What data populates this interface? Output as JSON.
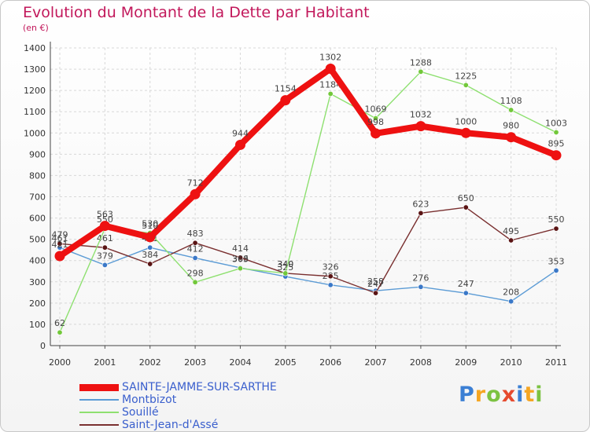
{
  "logo": {
    "letters": [
      {
        "char": "P",
        "color": "#3b7fd4"
      },
      {
        "char": "r",
        "color": "#f5a623"
      },
      {
        "char": "o",
        "color": "#7cc242"
      },
      {
        "char": "x",
        "color": "#e64a2e"
      },
      {
        "char": "i",
        "color": "#3b7fd4"
      },
      {
        "char": "t",
        "color": "#f5a623"
      },
      {
        "char": "i",
        "color": "#7cc242"
      }
    ]
  },
  "chart_data": {
    "type": "line",
    "title": "Evolution du Montant de la Dette par Habitant",
    "subtitle": "(en €)",
    "xlabel": "",
    "ylabel": "",
    "categories": [
      "2000",
      "2001",
      "2002",
      "2003",
      "2004",
      "2005",
      "2006",
      "2007",
      "2008",
      "2009",
      "2010",
      "2011"
    ],
    "ylim": [
      0,
      1400
    ],
    "yticks": [
      0,
      100,
      200,
      300,
      400,
      500,
      600,
      700,
      800,
      900,
      1000,
      1100,
      1200,
      1300,
      1400
    ],
    "grid": true,
    "legend_position": "bottom-left",
    "series": [
      {
        "name": "SAINTE-JAMME-SUR-SARTHE",
        "color": "#ee1111",
        "point_color": "#ee1111",
        "emphasis": "thick",
        "values": [
          421,
          563,
          510,
          712,
          944,
          1154,
          1302,
          998,
          1032,
          1000,
          980,
          895
        ],
        "labels": [
          "421",
          "563",
          "510",
          "712",
          "944",
          "1154",
          "1302",
          "998",
          "1032",
          "1000",
          "980",
          "895"
        ]
      },
      {
        "name": "Montbizot",
        "color": "#5b9bd5",
        "point_color": "#3a78c8",
        "emphasis": "thin",
        "values": [
          461,
          379,
          461,
          412,
          366,
          325,
          285,
          258,
          276,
          247,
          208,
          353
        ],
        "labels": [
          "461",
          "379",
          "461",
          "412",
          "366",
          "325",
          "285",
          "258",
          "276",
          "247",
          "208",
          "353"
        ]
      },
      {
        "name": "Souillé",
        "color": "#8ee070",
        "point_color": "#72c83a",
        "emphasis": "thin",
        "values": [
          62,
          550,
          530,
          298,
          363,
          340,
          1184,
          1069,
          1288,
          1225,
          1108,
          1003
        ],
        "labels": [
          "62",
          "550",
          "530",
          "298",
          "363",
          "340",
          "1184",
          "1069",
          "1288",
          "1225",
          "1108",
          "1003"
        ]
      },
      {
        "name": "Saint-Jean-d'Assé",
        "color": "#7a3030",
        "point_color": "#5a1414",
        "emphasis": "thin",
        "values": [
          479,
          461,
          384,
          483,
          414,
          340,
          326,
          247,
          623,
          650,
          495,
          550
        ],
        "labels": [
          "479",
          "461",
          "384",
          "483",
          "414",
          "340",
          "326",
          "247",
          "623",
          "650",
          "495",
          "550"
        ]
      }
    ]
  }
}
